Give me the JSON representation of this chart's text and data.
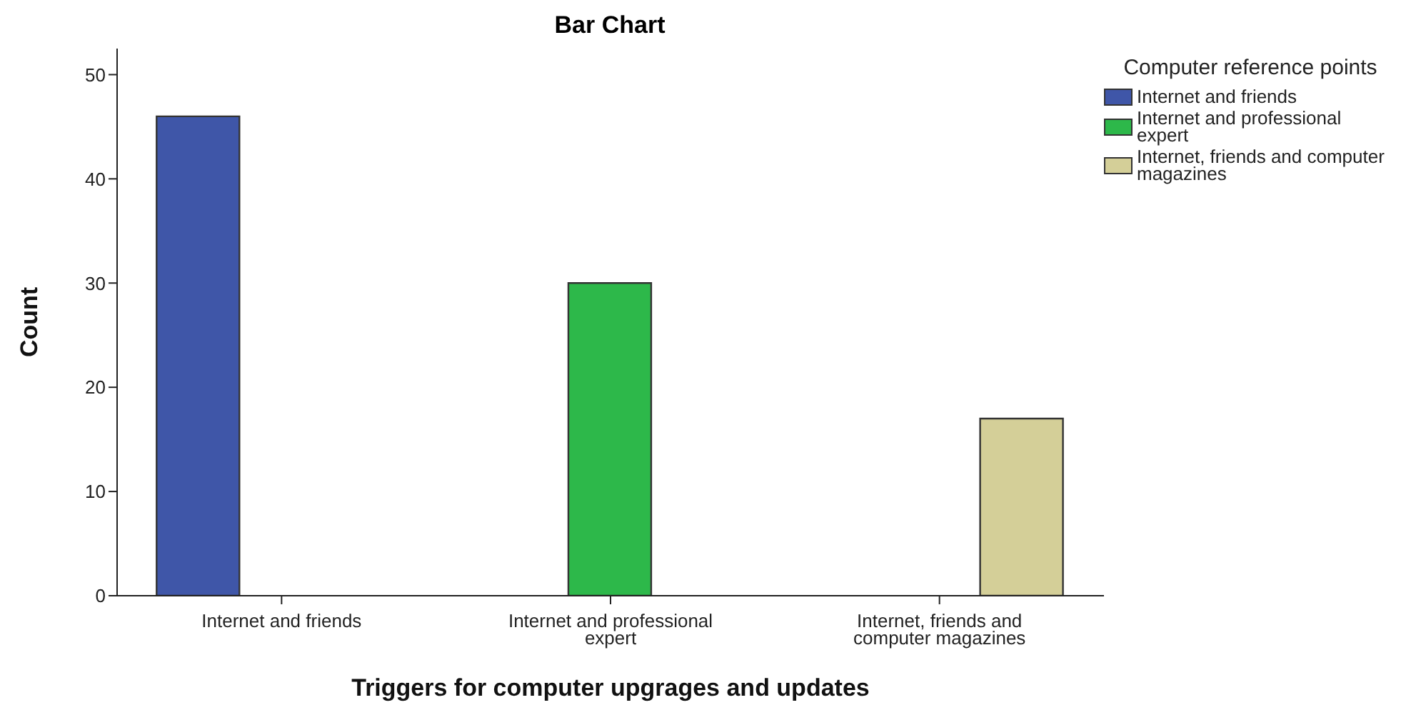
{
  "chart_data": {
    "type": "bar",
    "title": "Bar Chart",
    "xlabel": "Triggers for computer upgrages and updates",
    "ylabel": "Count",
    "legend_title": "Computer reference points",
    "categories": [
      "Internet and friends",
      "Internet and professional expert",
      "Internet, friends and computer magazines"
    ],
    "series": [
      {
        "name": "Internet and friends",
        "color": "#3f56a8",
        "values": [
          46,
          null,
          null
        ]
      },
      {
        "name": "Internet and professional expert",
        "color": "#2db84a",
        "values": [
          null,
          30,
          null
        ]
      },
      {
        "name": "Internet, friends and computer magazines",
        "color": "#d4cf98",
        "values": [
          null,
          null,
          17
        ]
      }
    ],
    "ylim": [
      0,
      52.5
    ],
    "yticks": [
      0,
      10,
      20,
      30,
      40,
      50
    ],
    "grid": false,
    "legend": "top right"
  }
}
